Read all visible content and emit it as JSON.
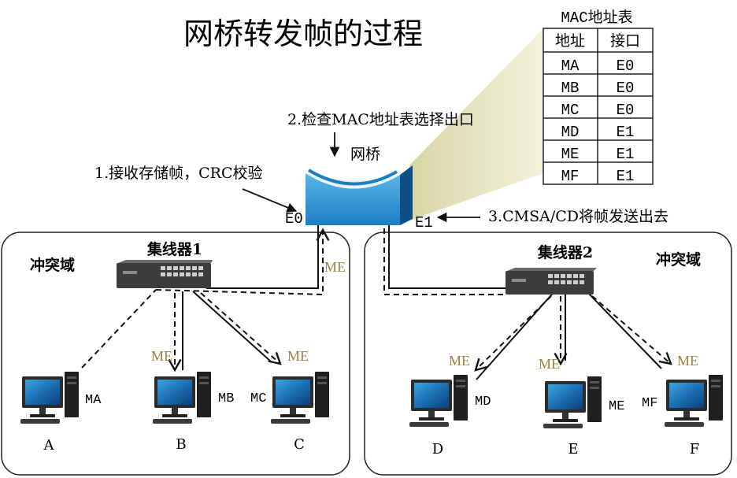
{
  "title": "网桥转发帧的过程",
  "mac_table": {
    "caption": "MAC地址表",
    "headers": [
      "地址",
      "接口"
    ],
    "rows": [
      {
        "addr": "MA",
        "port": "E0"
      },
      {
        "addr": "MB",
        "port": "E0"
      },
      {
        "addr": "MC",
        "port": "E0"
      },
      {
        "addr": "MD",
        "port": "E1"
      },
      {
        "addr": "ME",
        "port": "E1"
      },
      {
        "addr": "MF",
        "port": "E1"
      }
    ]
  },
  "steps": {
    "step1": "1.接收存储帧，CRC校验",
    "step2": "2.检查MAC地址表选择出口",
    "step3": "3.CMSA/CD将帧发送出去"
  },
  "bridge": {
    "label": "网桥",
    "port_left": "E0",
    "port_right": "E1"
  },
  "domains": {
    "left_label": "冲突域",
    "right_label": "冲突域"
  },
  "hubs": {
    "hub1": "集线器1",
    "hub2": "集线器2"
  },
  "frame_label": "ME",
  "hosts": [
    {
      "name": "A",
      "mac": "MA"
    },
    {
      "name": "B",
      "mac": "MB"
    },
    {
      "name": "C",
      "mac": "MC"
    },
    {
      "name": "D",
      "mac": "MD"
    },
    {
      "name": "E",
      "mac": "ME"
    },
    {
      "name": "F",
      "mac": "MF"
    }
  ],
  "colors": {
    "frame_label": "#a08040",
    "bridge_front": "#2b8fd0",
    "bridge_side": "#0b4f86",
    "beam": "#ecebc8"
  }
}
